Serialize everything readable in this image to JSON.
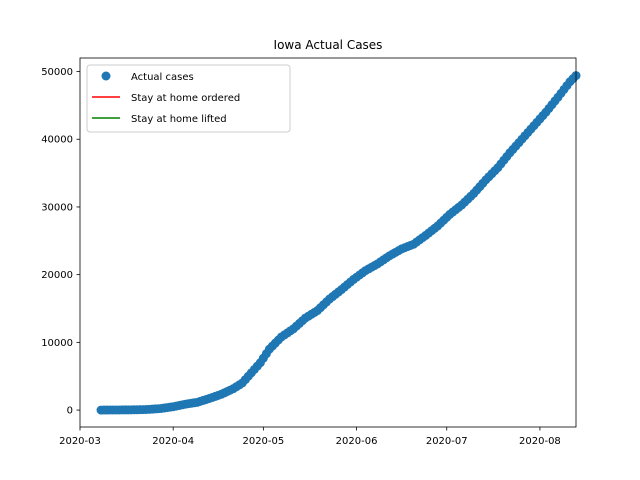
{
  "chart_data": {
    "type": "scatter",
    "title": "Iowa Actual Cases",
    "xlabel": "",
    "ylabel": "",
    "x_axis_type": "date",
    "xlim": [
      "2020-03-01",
      "2020-08-13"
    ],
    "ylim": [
      -2500,
      52000
    ],
    "x_ticks": [
      "2020-03",
      "2020-04",
      "2020-05",
      "2020-06",
      "2020-07",
      "2020-08"
    ],
    "y_ticks": [
      0,
      10000,
      20000,
      30000,
      40000,
      50000
    ],
    "grid": false,
    "legend_placement": "top-left",
    "legend": [
      {
        "label": "Actual cases",
        "marker": "circle",
        "color": "#1f77b4"
      },
      {
        "label": "Stay at home ordered",
        "marker": "line",
        "color": "#ff0000"
      },
      {
        "label": "Stay at home lifted",
        "marker": "line",
        "color": "#008000"
      }
    ],
    "series": [
      {
        "name": "Actual cases",
        "color": "#1f77b4",
        "points": [
          [
            "2020-03-08",
            0
          ],
          [
            "2020-03-12",
            16
          ],
          [
            "2020-03-16",
            23
          ],
          [
            "2020-03-20",
            44
          ],
          [
            "2020-03-24",
            105
          ],
          [
            "2020-03-28",
            235
          ],
          [
            "2020-04-01",
            497
          ],
          [
            "2020-04-05",
            868
          ],
          [
            "2020-04-09",
            1145
          ],
          [
            "2020-04-13",
            1710
          ],
          [
            "2020-04-17",
            2332
          ],
          [
            "2020-04-21",
            3159
          ],
          [
            "2020-04-24",
            4000
          ],
          [
            "2020-04-27",
            5500
          ],
          [
            "2020-04-30",
            7000
          ],
          [
            "2020-05-03",
            9000
          ],
          [
            "2020-05-07",
            10800
          ],
          [
            "2020-05-11",
            12000
          ],
          [
            "2020-05-15",
            13600
          ],
          [
            "2020-05-19",
            14700
          ],
          [
            "2020-05-23",
            16400
          ],
          [
            "2020-05-27",
            17800
          ],
          [
            "2020-05-31",
            19300
          ],
          [
            "2020-06-04",
            20600
          ],
          [
            "2020-06-08",
            21600
          ],
          [
            "2020-06-12",
            22800
          ],
          [
            "2020-06-16",
            23800
          ],
          [
            "2020-06-20",
            24500
          ],
          [
            "2020-06-24",
            25800
          ],
          [
            "2020-06-28",
            27200
          ],
          [
            "2020-07-02",
            28900
          ],
          [
            "2020-07-06",
            30300
          ],
          [
            "2020-07-10",
            32000
          ],
          [
            "2020-07-14",
            34000
          ],
          [
            "2020-07-18",
            35800
          ],
          [
            "2020-07-22",
            38000
          ],
          [
            "2020-07-26",
            40000
          ],
          [
            "2020-07-30",
            42000
          ],
          [
            "2020-08-03",
            44000
          ],
          [
            "2020-08-07",
            46200
          ],
          [
            "2020-08-11",
            48500
          ],
          [
            "2020-08-13",
            49400
          ]
        ]
      }
    ]
  }
}
